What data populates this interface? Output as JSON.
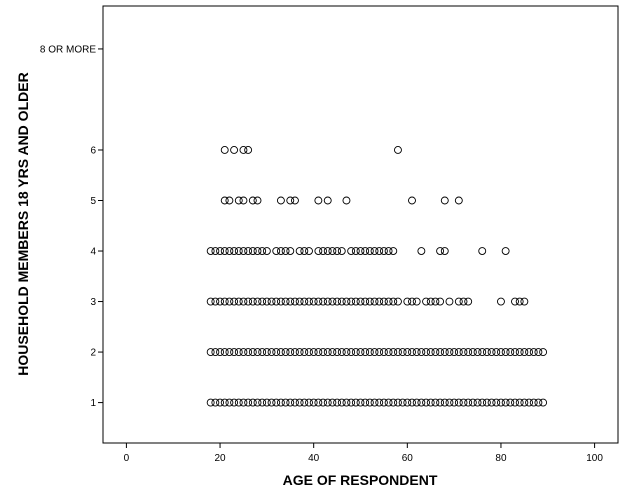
{
  "chart_data": {
    "type": "scatter",
    "xlabel": "AGE OF RESPONDENT",
    "ylabel": "HOUSEHOLD MEMBERS 18 YRS AND OLDER",
    "xlim": [
      -5,
      105
    ],
    "ylim": [
      0.2,
      8.85
    ],
    "x_ticks": [
      0,
      20,
      40,
      60,
      80,
      100
    ],
    "y_ticks": [
      {
        "value": 1,
        "label": "1"
      },
      {
        "value": 2,
        "label": "2"
      },
      {
        "value": 3,
        "label": "3"
      },
      {
        "value": 4,
        "label": "4"
      },
      {
        "value": 5,
        "label": "5"
      },
      {
        "value": 6,
        "label": "6"
      },
      {
        "value": 8,
        "label": "8 OR MORE"
      }
    ],
    "marker": "open-circle",
    "grid": false,
    "series_by_y": [
      {
        "y": 1,
        "x": [
          18,
          19,
          20,
          21,
          22,
          23,
          24,
          25,
          26,
          27,
          28,
          29,
          30,
          31,
          32,
          33,
          34,
          35,
          36,
          37,
          38,
          39,
          40,
          41,
          42,
          43,
          44,
          45,
          46,
          47,
          48,
          49,
          50,
          51,
          52,
          53,
          54,
          55,
          56,
          57,
          58,
          59,
          60,
          61,
          62,
          63,
          64,
          65,
          66,
          67,
          68,
          69,
          70,
          71,
          72,
          73,
          74,
          75,
          76,
          77,
          78,
          79,
          80,
          81,
          82,
          83,
          84,
          85,
          86,
          87,
          88,
          89
        ]
      },
      {
        "y": 2,
        "x": [
          18,
          19,
          20,
          21,
          22,
          23,
          24,
          25,
          26,
          27,
          28,
          29,
          30,
          31,
          32,
          33,
          34,
          35,
          36,
          37,
          38,
          39,
          40,
          41,
          42,
          43,
          44,
          45,
          46,
          47,
          48,
          49,
          50,
          51,
          52,
          53,
          54,
          55,
          56,
          57,
          58,
          59,
          60,
          61,
          62,
          63,
          64,
          65,
          66,
          67,
          68,
          69,
          70,
          71,
          72,
          73,
          74,
          75,
          76,
          77,
          78,
          79,
          80,
          81,
          82,
          83,
          84,
          85,
          86,
          87,
          88,
          89
        ]
      },
      {
        "y": 3,
        "x": [
          18,
          19,
          20,
          21,
          22,
          23,
          24,
          25,
          26,
          27,
          28,
          29,
          30,
          31,
          32,
          33,
          34,
          35,
          36,
          37,
          38,
          39,
          40,
          41,
          42,
          43,
          44,
          45,
          46,
          47,
          48,
          49,
          50,
          51,
          52,
          53,
          54,
          55,
          56,
          57,
          58,
          60,
          61,
          62,
          64,
          65,
          66,
          67,
          69,
          71,
          72,
          73,
          80,
          83,
          84,
          85
        ]
      },
      {
        "y": 4,
        "x": [
          18,
          19,
          20,
          21,
          22,
          23,
          24,
          25,
          26,
          27,
          28,
          29,
          30,
          32,
          33,
          34,
          35,
          37,
          38,
          39,
          41,
          42,
          43,
          44,
          45,
          46,
          48,
          49,
          50,
          51,
          52,
          53,
          54,
          55,
          56,
          57,
          63,
          67,
          68,
          76,
          81
        ]
      },
      {
        "y": 5,
        "x": [
          21,
          22,
          24,
          25,
          27,
          28,
          33,
          35,
          36,
          41,
          43,
          47,
          61,
          68,
          71
        ]
      },
      {
        "y": 6,
        "x": [
          21,
          23,
          25,
          26,
          58
        ]
      }
    ]
  }
}
